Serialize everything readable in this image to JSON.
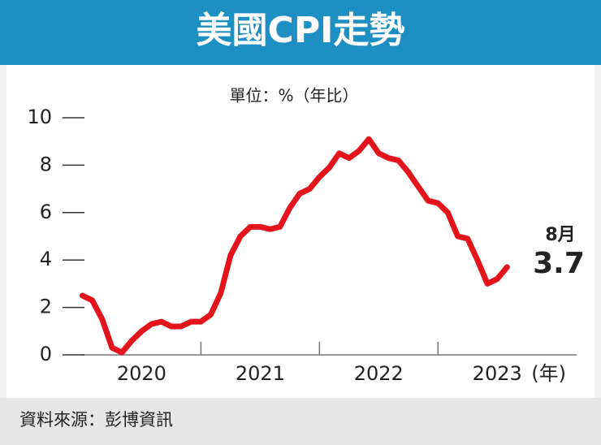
{
  "chart_data": {
    "type": "line",
    "title": "美國CPI走勢",
    "subtitle": "單位：%（年比）",
    "source": "資料來源：彭博資訊",
    "x_label": "(年)",
    "end_annotation": "8月",
    "color": "#e3141b",
    "x": [
      2020,
      2020.083,
      2020.167,
      2020.25,
      2020.333,
      2020.417,
      2020.5,
      2020.583,
      2020.667,
      2020.75,
      2020.833,
      2020.917,
      2021,
      2021.083,
      2021.167,
      2021.25,
      2021.333,
      2021.417,
      2021.5,
      2021.583,
      2021.667,
      2021.75,
      2021.833,
      2021.917,
      2022,
      2022.083,
      2022.167,
      2022.25,
      2022.333,
      2022.417,
      2022.5,
      2022.583,
      2022.667,
      2022.75,
      2022.833,
      2022.917,
      2023,
      2023.083,
      2023.167,
      2023.25,
      2023.333,
      2023.417,
      2023.5,
      2023.583
    ],
    "values": [
      2.5,
      2.3,
      1.5,
      0.3,
      0.1,
      0.6,
      1.0,
      1.3,
      1.4,
      1.2,
      1.2,
      1.4,
      1.4,
      1.7,
      2.6,
      4.2,
      5.0,
      5.4,
      5.4,
      5.3,
      5.4,
      6.2,
      6.8,
      7.0,
      7.5,
      7.9,
      8.5,
      8.3,
      8.6,
      9.1,
      8.5,
      8.3,
      8.2,
      7.7,
      7.1,
      6.5,
      6.4,
      6.0,
      5.0,
      4.9,
      4.0,
      3.0,
      3.2,
      3.7
    ],
    "xlim": [
      2019.99,
      2024.17
    ],
    "xticks": [
      2021,
      2022,
      2023
    ],
    "xlabels": [
      {
        "value": 2020.5,
        "label": "2020"
      },
      {
        "value": 2021.5,
        "label": "2021"
      },
      {
        "value": 2022.5,
        "label": "2022"
      },
      {
        "value": 2023.5,
        "label": "2023"
      }
    ],
    "ylim": [
      0,
      10
    ],
    "yticks": [
      0,
      2,
      4,
      6,
      8,
      10
    ]
  }
}
